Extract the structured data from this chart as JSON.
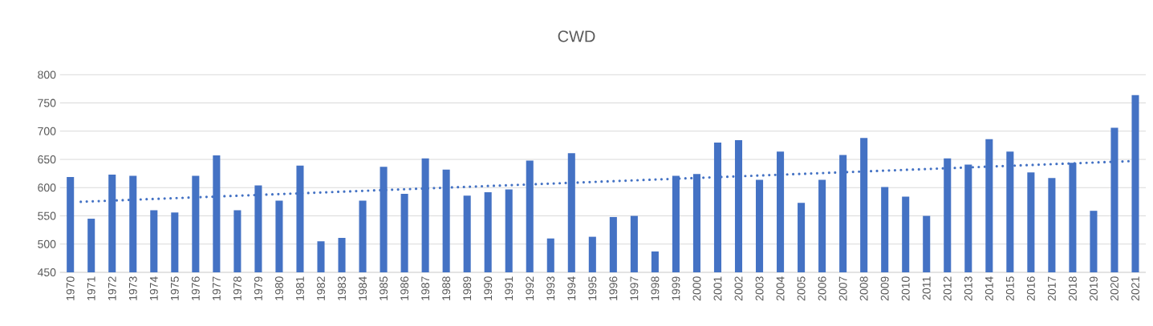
{
  "chart_data": {
    "type": "bar",
    "title": "CWD",
    "x": [
      1970,
      1971,
      1972,
      1973,
      1974,
      1975,
      1976,
      1977,
      1978,
      1979,
      1980,
      1981,
      1982,
      1983,
      1984,
      1985,
      1986,
      1987,
      1988,
      1989,
      1990,
      1991,
      1992,
      1993,
      1994,
      1995,
      1996,
      1997,
      1998,
      1999,
      2000,
      2001,
      2002,
      2003,
      2004,
      2005,
      2006,
      2007,
      2008,
      2009,
      2010,
      2011,
      2012,
      2013,
      2014,
      2015,
      2016,
      2017,
      2018,
      2019,
      2020,
      2021
    ],
    "xlim": [
      1969.5,
      2021.5
    ],
    "xticks": [
      1970,
      1971,
      1972,
      1973,
      1974,
      1975,
      1976,
      1977,
      1978,
      1979,
      1980,
      1981,
      1982,
      1983,
      1984,
      1985,
      1986,
      1987,
      1988,
      1989,
      1990,
      1991,
      1992,
      1993,
      1994,
      1995,
      1996,
      1997,
      1998,
      1999,
      2000,
      2001,
      2002,
      2003,
      2004,
      2005,
      2006,
      2007,
      2008,
      2009,
      2010,
      2011,
      2012,
      2013,
      2014,
      2015,
      2016,
      2017,
      2018,
      2019,
      2020,
      2021
    ],
    "ylim": [
      450,
      800
    ],
    "yticks": [
      450,
      500,
      550,
      600,
      650,
      700,
      750,
      800
    ],
    "grid": "y",
    "series": [
      {
        "color": "#4472c4",
        "values": [
          619,
          545,
          623,
          621,
          560,
          556,
          621,
          657,
          560,
          604,
          577,
          639,
          505,
          511,
          577,
          637,
          589,
          652,
          632,
          586,
          592,
          597,
          648,
          510,
          661,
          513,
          548,
          550,
          487,
          621,
          624,
          680,
          684,
          614,
          664,
          573,
          614,
          658,
          688,
          601,
          584,
          550,
          652,
          641,
          686,
          664,
          627,
          617,
          644,
          559,
          706,
          764
        ]
      },
      {
        "type": "line",
        "color": "#4472c4",
        "line_style": "dotted",
        "x": [
          1970.5,
          2020.75
        ],
        "values": [
          575,
          647
        ]
      }
    ]
  }
}
